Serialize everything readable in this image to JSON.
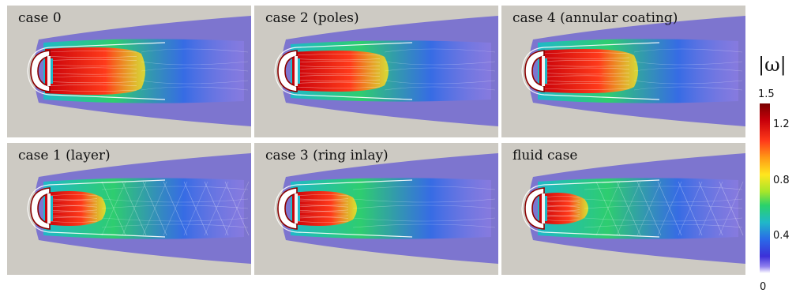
{
  "panels": [
    {
      "label": "case 0"
    },
    {
      "label": "case 2 (poles)"
    },
    {
      "label": "case 4 (annular coating)"
    },
    {
      "label": "case 1 (layer)"
    },
    {
      "label": "case 3 (ring inlay)"
    },
    {
      "label": "fluid case"
    }
  ],
  "colorbar": {
    "title": "|ω|",
    "max_label": "1.5",
    "ticks": [
      "1.2",
      "0.8",
      "0.4"
    ],
    "min_label": "0",
    "range": [
      0,
      1.5
    ],
    "colormap": "jet",
    "colors": [
      "#7a0000",
      "#c8000a",
      "#ff3a1a",
      "#ff9a16",
      "#ffe61e",
      "#a6e62a",
      "#2ad26a",
      "#20b8c8",
      "#2a6ae8",
      "#3c30d8",
      "#9080ee",
      "#ffffff"
    ]
  },
  "background_color": "#cdcac3"
}
